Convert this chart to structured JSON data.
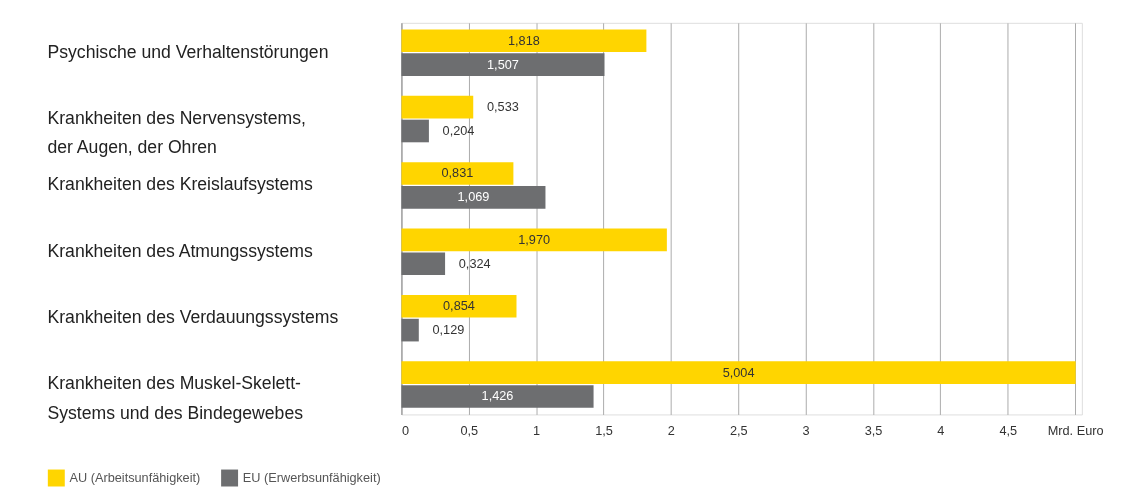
{
  "chart_data": {
    "type": "bar",
    "orientation": "horizontal",
    "categories": [
      "Psychische und Verhaltenstörungen",
      "Krankheiten des Nervensystems,\nder Augen, der Ohren",
      "Krankheiten des Kreislaufsystems",
      "Krankheiten des Atmungssystems",
      "Krankheiten des Verdauungssystems",
      "Krankheiten des Muskel-Skelett-\nSystems und des Bindegewebes"
    ],
    "series": [
      {
        "name": "AU (Arbeitsunfähigkeit)",
        "color": "#ffd500",
        "values": [
          1.818,
          0.533,
          0.831,
          1.97,
          0.854,
          5.004
        ],
        "value_labels": [
          "1,818",
          "0,533",
          "0,831",
          "1,970",
          "0,854",
          "5,004"
        ]
      },
      {
        "name": "EU (Erwerbsunfähigkeit)",
        "color": "#6d6e70",
        "values": [
          1.507,
          0.204,
          1.069,
          0.324,
          0.129,
          1.426
        ],
        "value_labels": [
          "1,507",
          "0,204",
          "1,069",
          "0,324",
          "0,129",
          "1,426"
        ]
      }
    ],
    "xlim": [
      0,
      5.05
    ],
    "xticks": [
      0,
      {
        "value": 0.5,
        "label": "0,5"
      },
      1,
      {
        "value": 1.5,
        "label": "1,5"
      },
      2,
      {
        "value": 2.5,
        "label": "2,5"
      },
      3,
      {
        "value": 3.5,
        "label": "3,5"
      },
      4,
      {
        "value": 4.5,
        "label": "4,5"
      },
      {
        "value": 5,
        "label": "Mrd. Euro"
      }
    ],
    "grid": "x",
    "legend": "bottom left"
  }
}
